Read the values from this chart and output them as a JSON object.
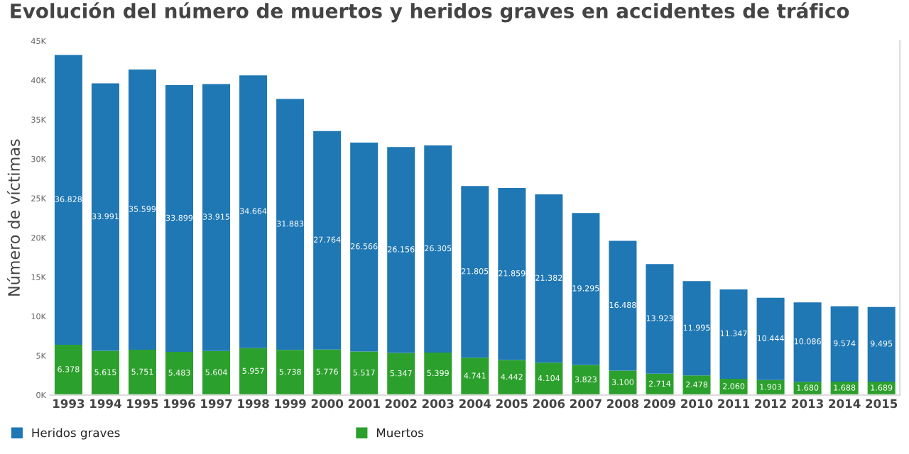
{
  "chart_data": {
    "type": "bar",
    "title": "Evolución del número de muertos y heridos graves en accidentes de tráfico",
    "ylabel": "Número de víctimas",
    "categories": [
      "1993",
      "1994",
      "1995",
      "1996",
      "1997",
      "1998",
      "1999",
      "2000",
      "2001",
      "2002",
      "2003",
      "2004",
      "2005",
      "2006",
      "2007",
      "2008",
      "2009",
      "2010",
      "2011",
      "2012",
      "2013",
      "2014",
      "2015"
    ],
    "stacked": true,
    "legend": "bottom",
    "grid": false,
    "ylim": [
      0,
      45000
    ],
    "yticks": [
      {
        "value": 0,
        "label": "0K"
      },
      {
        "value": 5000,
        "label": "5K"
      },
      {
        "value": 10000,
        "label": "10K"
      },
      {
        "value": 15000,
        "label": "15K"
      },
      {
        "value": 20000,
        "label": "20K"
      },
      {
        "value": 25000,
        "label": "25K"
      },
      {
        "value": 30000,
        "label": "30K"
      },
      {
        "value": 35000,
        "label": "35K"
      },
      {
        "value": 40000,
        "label": "40K"
      },
      {
        "value": 45000,
        "label": "45K"
      }
    ],
    "series": [
      {
        "name": "Muertos",
        "color": "#2ca02c",
        "values": [
          6378,
          5615,
          5751,
          5483,
          5604,
          5957,
          5738,
          5776,
          5517,
          5347,
          5399,
          4741,
          4442,
          4104,
          3823,
          3100,
          2714,
          2478,
          2060,
          1903,
          1680,
          1688,
          1689
        ],
        "value_labels": [
          "6.378",
          "5.615",
          "5.751",
          "5.483",
          "5.604",
          "5.957",
          "5.738",
          "5.776",
          "5.517",
          "5.347",
          "5.399",
          "4.741",
          "4.442",
          "4.104",
          "3.823",
          "3.100",
          "2.714",
          "2.478",
          "2.060",
          "1.903",
          "1.680",
          "1.688",
          "1.689"
        ]
      },
      {
        "name": "Heridos graves",
        "color": "#1f77b4",
        "values": [
          36828,
          33991,
          35599,
          33899,
          33915,
          34664,
          31883,
          27764,
          26566,
          26156,
          26305,
          21805,
          21859,
          21382,
          19295,
          16488,
          13923,
          11995,
          11347,
          10444,
          10086,
          9574,
          9495
        ],
        "value_labels": [
          "36.828",
          "33.991",
          "35.599",
          "33.899",
          "33.915",
          "34.664",
          "31.883",
          "27.764",
          "26.566",
          "26.156",
          "26.305",
          "21.805",
          "21.859",
          "21.382",
          "19.295",
          "16.488",
          "13.923",
          "11.995",
          "11.347",
          "10.444",
          "10.086",
          "9.574",
          "9.495"
        ]
      }
    ]
  }
}
